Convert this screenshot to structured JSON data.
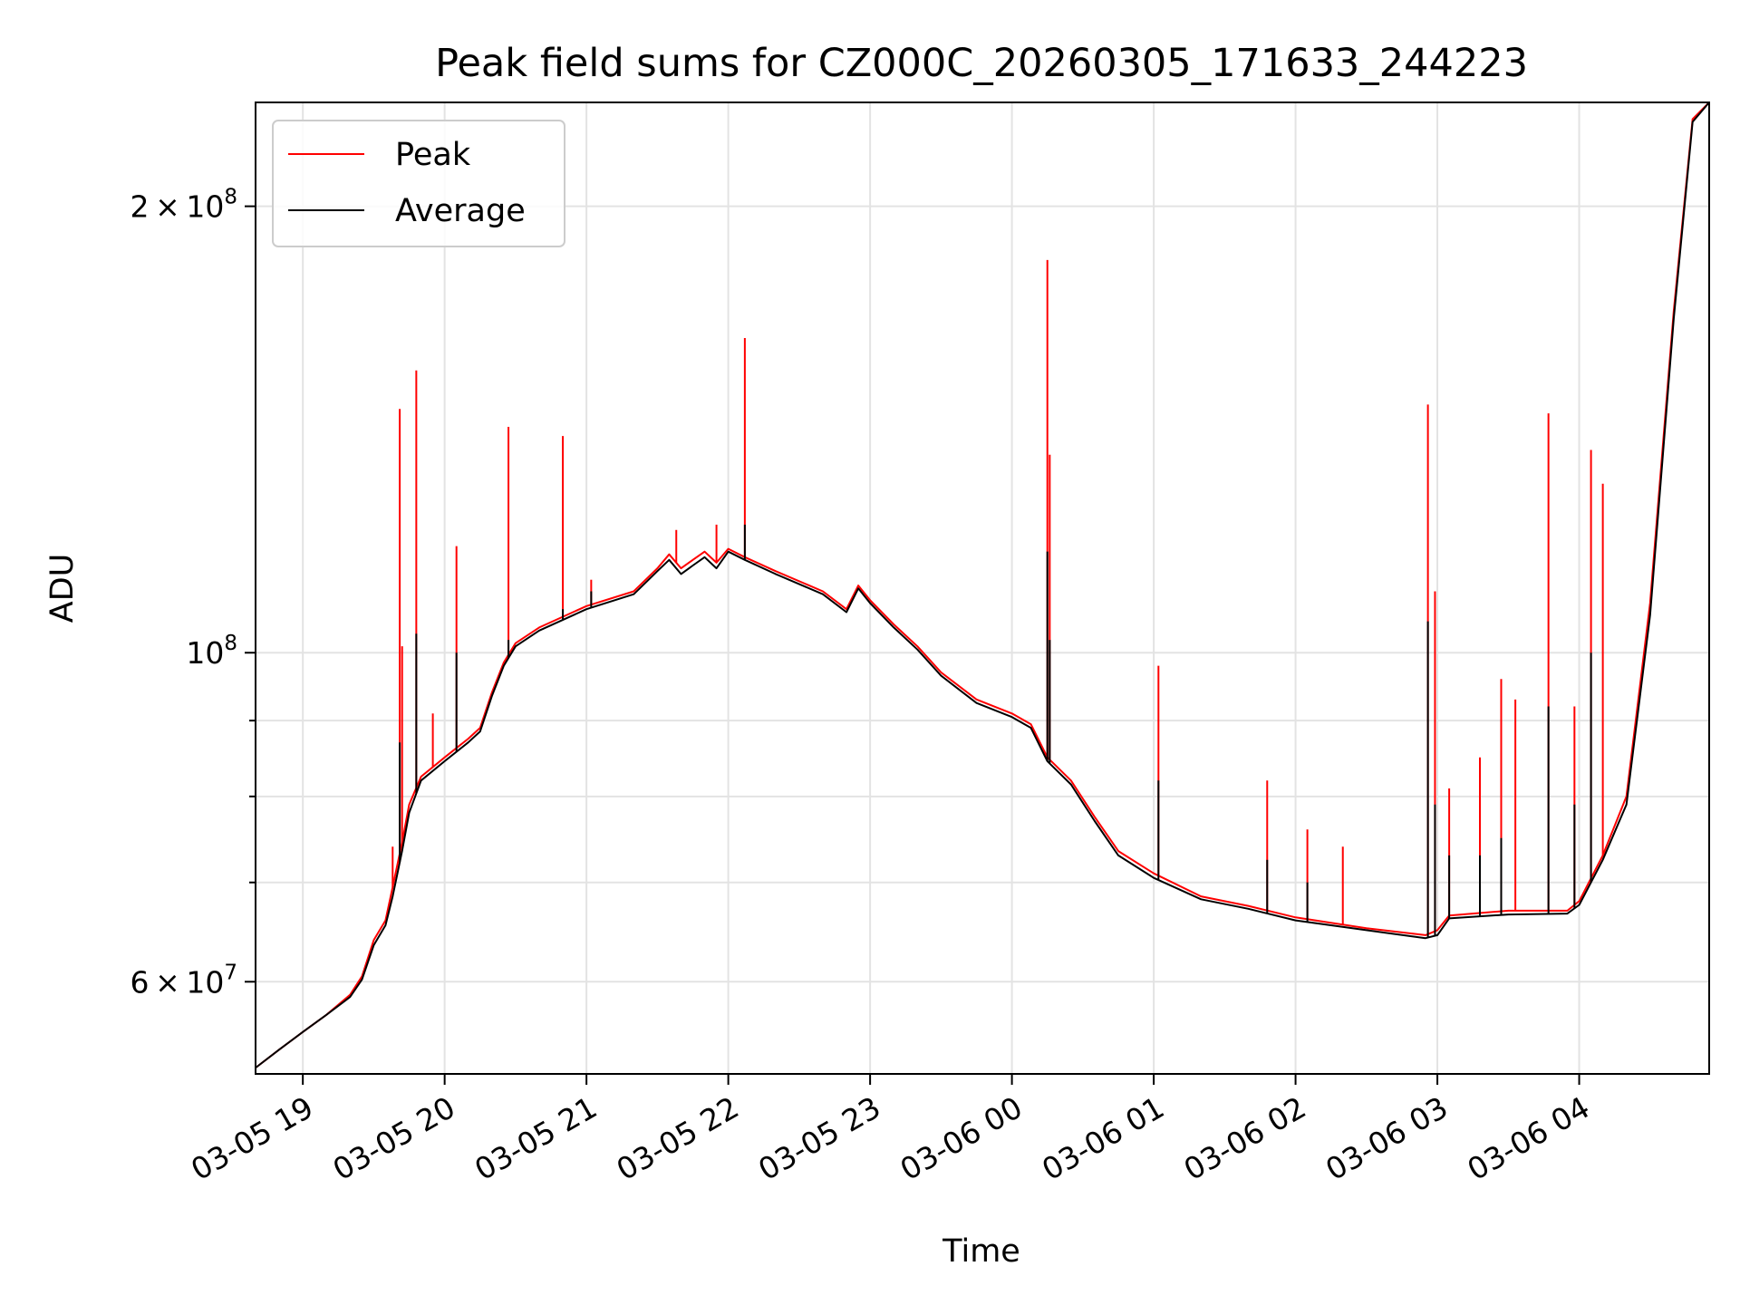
{
  "chart_data": {
    "type": "line",
    "title": "Peak field sums for CZ000C_20260305_171633_244223",
    "xlabel": "Time",
    "ylabel": "ADU",
    "yscale": "log",
    "ylim": [
      52000000,
      235000000
    ],
    "xlim": [
      "2026-03-05 18:40",
      "2026-03-06 04:55"
    ],
    "grid": true,
    "legend_position": "top-left",
    "x_ticks": [
      {
        "value": "2026-03-05 19:00",
        "label": "03-05 19"
      },
      {
        "value": "2026-03-05 20:00",
        "label": "03-05 20"
      },
      {
        "value": "2026-03-05 21:00",
        "label": "03-05 21"
      },
      {
        "value": "2026-03-05 22:00",
        "label": "03-05 22"
      },
      {
        "value": "2026-03-05 23:00",
        "label": "03-05 23"
      },
      {
        "value": "2026-03-06 00:00",
        "label": "03-06 00"
      },
      {
        "value": "2026-03-06 01:00",
        "label": "03-06 01"
      },
      {
        "value": "2026-03-06 02:00",
        "label": "03-06 02"
      },
      {
        "value": "2026-03-06 03:00",
        "label": "03-06 03"
      },
      {
        "value": "2026-03-06 04:00",
        "label": "03-06 04"
      }
    ],
    "y_ticks": [
      {
        "value": 60000000,
        "mantissa": "6",
        "base": "10",
        "exp": "7"
      },
      {
        "value": 100000000,
        "mantissa": "",
        "base": "10",
        "exp": "8"
      },
      {
        "value": 200000000,
        "mantissa": "2",
        "base": "10",
        "exp": "8"
      }
    ],
    "y_minor_ticks": [
      70000000,
      80000000,
      90000000
    ],
    "series": [
      {
        "name": "Peak",
        "color": "#ff0000",
        "x": [
          "2026-03-05 18:40",
          "2026-03-05 18:50",
          "2026-03-05 19:00",
          "2026-03-05 19:10",
          "2026-03-05 19:20",
          "2026-03-05 19:25",
          "2026-03-05 19:30",
          "2026-03-05 19:35",
          "2026-03-05 19:38",
          "2026-03-05 19:42",
          "2026-03-05 19:45",
          "2026-03-05 19:50",
          "2026-03-05 20:00",
          "2026-03-05 20:10",
          "2026-03-05 20:15",
          "2026-03-05 20:20",
          "2026-03-05 20:25",
          "2026-03-05 20:30",
          "2026-03-05 20:40",
          "2026-03-05 21:00",
          "2026-03-05 21:20",
          "2026-03-05 21:30",
          "2026-03-05 21:35",
          "2026-03-05 21:40",
          "2026-03-05 21:45",
          "2026-03-05 21:50",
          "2026-03-05 21:55",
          "2026-03-05 22:00",
          "2026-03-05 22:07",
          "2026-03-05 22:20",
          "2026-03-05 22:40",
          "2026-03-05 22:50",
          "2026-03-05 22:55",
          "2026-03-05 23:00",
          "2026-03-05 23:10",
          "2026-03-05 23:20",
          "2026-03-05 23:30",
          "2026-03-05 23:45",
          "2026-03-06 00:00",
          "2026-03-06 00:08",
          "2026-03-06 00:15",
          "2026-03-06 00:25",
          "2026-03-06 00:35",
          "2026-03-06 00:45",
          "2026-03-06 01:00",
          "2026-03-06 01:20",
          "2026-03-06 01:40",
          "2026-03-06 02:00",
          "2026-03-06 02:30",
          "2026-03-06 02:55",
          "2026-03-06 03:00",
          "2026-03-06 03:05",
          "2026-03-06 03:30",
          "2026-03-06 03:55",
          "2026-03-06 04:00",
          "2026-03-06 04:10",
          "2026-03-06 04:20",
          "2026-03-06 04:30",
          "2026-03-06 04:40",
          "2026-03-06 04:48",
          "2026-03-06 04:55"
        ],
        "y": [
          52500000,
          54000000,
          55500000,
          57000000,
          58800000,
          60500000,
          64000000,
          66000000,
          69500000,
          74500000,
          79000000,
          82500000,
          85000000,
          87500000,
          89000000,
          94000000,
          98500000,
          101500000,
          104000000,
          107500000,
          110000000,
          114000000,
          116500000,
          114000000,
          115500000,
          117000000,
          115000000,
          117500000,
          116000000,
          113500000,
          110000000,
          107000000,
          111000000,
          108500000,
          104500000,
          101000000,
          97000000,
          93000000,
          91000000,
          89500000,
          85000000,
          82000000,
          77500000,
          73500000,
          71000000,
          68500000,
          67500000,
          66300000,
          65200000,
          64500000,
          65000000,
          66500000,
          67000000,
          67000000,
          68000000,
          73000000,
          80000000,
          108000000,
          170000000,
          229000000,
          235000000
        ],
        "spikes": [
          {
            "x": "2026-03-05 19:38",
            "y": 74000000
          },
          {
            "x": "2026-03-05 19:41",
            "y": 146000000
          },
          {
            "x": "2026-03-05 19:42",
            "y": 101000000
          },
          {
            "x": "2026-03-05 19:48",
            "y": 155000000
          },
          {
            "x": "2026-03-05 19:55",
            "y": 91000000
          },
          {
            "x": "2026-03-05 20:05",
            "y": 118000000
          },
          {
            "x": "2026-03-05 20:27",
            "y": 142000000
          },
          {
            "x": "2026-03-05 20:50",
            "y": 140000000
          },
          {
            "x": "2026-03-05 21:02",
            "y": 112000000
          },
          {
            "x": "2026-03-05 21:38",
            "y": 121000000
          },
          {
            "x": "2026-03-05 21:55",
            "y": 122000000
          },
          {
            "x": "2026-03-05 22:07",
            "y": 163000000
          },
          {
            "x": "2026-03-06 00:15",
            "y": 184000000
          },
          {
            "x": "2026-03-06 00:16",
            "y": 136000000
          },
          {
            "x": "2026-03-06 01:02",
            "y": 98000000
          },
          {
            "x": "2026-03-06 01:48",
            "y": 82000000
          },
          {
            "x": "2026-03-06 02:05",
            "y": 76000000
          },
          {
            "x": "2026-03-06 02:20",
            "y": 74000000
          },
          {
            "x": "2026-03-06 02:56",
            "y": 147000000
          },
          {
            "x": "2026-03-06 02:59",
            "y": 110000000
          },
          {
            "x": "2026-03-06 03:05",
            "y": 81000000
          },
          {
            "x": "2026-03-06 03:18",
            "y": 85000000
          },
          {
            "x": "2026-03-06 03:27",
            "y": 96000000
          },
          {
            "x": "2026-03-06 03:33",
            "y": 93000000
          },
          {
            "x": "2026-03-06 03:47",
            "y": 145000000
          },
          {
            "x": "2026-03-06 03:58",
            "y": 92000000
          },
          {
            "x": "2026-03-06 04:05",
            "y": 137000000
          },
          {
            "x": "2026-03-06 04:10",
            "y": 130000000
          }
        ]
      },
      {
        "name": "Average",
        "color": "#000000",
        "x": [
          "2026-03-05 18:40",
          "2026-03-05 18:50",
          "2026-03-05 19:00",
          "2026-03-05 19:10",
          "2026-03-05 19:20",
          "2026-03-05 19:25",
          "2026-03-05 19:30",
          "2026-03-05 19:35",
          "2026-03-05 19:38",
          "2026-03-05 19:42",
          "2026-03-05 19:45",
          "2026-03-05 19:50",
          "2026-03-05 20:00",
          "2026-03-05 20:10",
          "2026-03-05 20:15",
          "2026-03-05 20:20",
          "2026-03-05 20:25",
          "2026-03-05 20:30",
          "2026-03-05 20:40",
          "2026-03-05 21:00",
          "2026-03-05 21:20",
          "2026-03-05 21:30",
          "2026-03-05 21:35",
          "2026-03-05 21:40",
          "2026-03-05 21:45",
          "2026-03-05 21:50",
          "2026-03-05 21:55",
          "2026-03-05 22:00",
          "2026-03-05 22:07",
          "2026-03-05 22:20",
          "2026-03-05 22:40",
          "2026-03-05 22:50",
          "2026-03-05 22:55",
          "2026-03-05 23:00",
          "2026-03-05 23:10",
          "2026-03-05 23:20",
          "2026-03-05 23:30",
          "2026-03-05 23:45",
          "2026-03-06 00:00",
          "2026-03-06 00:08",
          "2026-03-06 00:15",
          "2026-03-06 00:25",
          "2026-03-06 00:35",
          "2026-03-06 00:45",
          "2026-03-06 01:00",
          "2026-03-06 01:20",
          "2026-03-06 01:40",
          "2026-03-06 02:00",
          "2026-03-06 02:30",
          "2026-03-06 02:55",
          "2026-03-06 03:00",
          "2026-03-06 03:05",
          "2026-03-06 03:30",
          "2026-03-06 03:55",
          "2026-03-06 04:00",
          "2026-03-06 04:10",
          "2026-03-06 04:20",
          "2026-03-06 04:30",
          "2026-03-06 04:40",
          "2026-03-06 04:48",
          "2026-03-06 04:55"
        ],
        "y": [
          52500000,
          54000000,
          55500000,
          57000000,
          58600000,
          60200000,
          63500000,
          65500000,
          68500000,
          73500000,
          78000000,
          82000000,
          84500000,
          87000000,
          88500000,
          93500000,
          98000000,
          101000000,
          103500000,
          107000000,
          109500000,
          113500000,
          115500000,
          113000000,
          114500000,
          116000000,
          114000000,
          117000000,
          115500000,
          113000000,
          109500000,
          106500000,
          110500000,
          108000000,
          104000000,
          100500000,
          96500000,
          92500000,
          90500000,
          89000000,
          84500000,
          81500000,
          77000000,
          73000000,
          70500000,
          68200000,
          67200000,
          66000000,
          65000000,
          64200000,
          64500000,
          66200000,
          66600000,
          66700000,
          67600000,
          72500000,
          79000000,
          106000000,
          168000000,
          228000000,
          235000000
        ],
        "spikes": [
          {
            "x": "2026-03-05 19:41",
            "y": 87000000
          },
          {
            "x": "2026-03-05 19:48",
            "y": 103000000
          },
          {
            "x": "2026-03-05 20:05",
            "y": 100000000
          },
          {
            "x": "2026-03-05 20:27",
            "y": 102000000
          },
          {
            "x": "2026-03-05 20:50",
            "y": 107000000
          },
          {
            "x": "2026-03-05 21:02",
            "y": 110000000
          },
          {
            "x": "2026-03-05 22:07",
            "y": 122000000
          },
          {
            "x": "2026-03-06 00:15",
            "y": 117000000
          },
          {
            "x": "2026-03-06 00:16",
            "y": 102000000
          },
          {
            "x": "2026-03-06 01:02",
            "y": 82000000
          },
          {
            "x": "2026-03-06 01:48",
            "y": 72500000
          },
          {
            "x": "2026-03-06 02:05",
            "y": 70000000
          },
          {
            "x": "2026-03-06 02:56",
            "y": 105000000
          },
          {
            "x": "2026-03-06 02:59",
            "y": 79000000
          },
          {
            "x": "2026-03-06 03:05",
            "y": 73000000
          },
          {
            "x": "2026-03-06 03:18",
            "y": 73000000
          },
          {
            "x": "2026-03-06 03:27",
            "y": 75000000
          },
          {
            "x": "2026-03-06 03:47",
            "y": 92000000
          },
          {
            "x": "2026-03-06 03:58",
            "y": 79000000
          },
          {
            "x": "2026-03-06 04:05",
            "y": 100000000
          }
        ]
      }
    ]
  }
}
